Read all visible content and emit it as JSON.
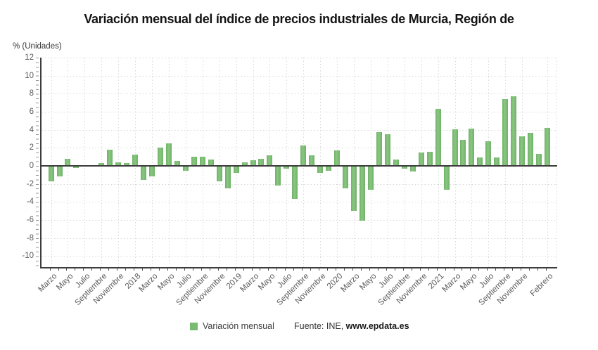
{
  "title": "Variación mensual del índice de precios industriales de Murcia, Región de",
  "y_axis_unit": "% (Unidades)",
  "legend": {
    "label": "Variación mensual"
  },
  "source": {
    "prefix": "Fuente: INE,",
    "brand": "www.epdata.es"
  },
  "colors": {
    "bar": "#7abb72",
    "axis": "#3c3c3c",
    "grid": "#d8d8d8",
    "tick_text": "#5a5a5a",
    "title_text": "#141414"
  },
  "chart_data": {
    "type": "bar",
    "title": "Variación mensual del índice de precios industriales de Murcia, Región de",
    "xlabel": "",
    "ylabel": "% (Unidades)",
    "ylim": [
      -11.2,
      12
    ],
    "grid": true,
    "legend_position": "bottom",
    "series_name": "Variación mensual",
    "y_ticks": [
      12,
      10,
      8,
      6,
      4,
      2,
      0,
      -2,
      -4,
      -6,
      -8,
      -10
    ],
    "x_tick_labels": [
      "Marzo",
      "Mayo",
      "Julio",
      "Septiembre",
      "Noviembre",
      "2018",
      "Marzo",
      "Mayo",
      "Julio",
      "Septiembre",
      "Noviembre",
      "2019",
      "Marzo",
      "Mayo",
      "Julio",
      "Septiembre",
      "Noviembre",
      "2020",
      "Marzo",
      "Mayo",
      "Julio",
      "Septiembre",
      "Noviembre",
      "2021",
      "Marzo",
      "Mayo",
      "Julio",
      "Septiembre",
      "Noviembre",
      "Febrero"
    ],
    "categories": [
      "2017-03",
      "2017-04",
      "2017-05",
      "2017-06",
      "2017-07",
      "2017-08",
      "2017-09",
      "2017-10",
      "2017-11",
      "2017-12",
      "2018-01",
      "2018-02",
      "2018-03",
      "2018-04",
      "2018-05",
      "2018-06",
      "2018-07",
      "2018-08",
      "2018-09",
      "2018-10",
      "2018-11",
      "2018-12",
      "2019-01",
      "2019-02",
      "2019-03",
      "2019-04",
      "2019-05",
      "2019-06",
      "2019-07",
      "2019-08",
      "2019-09",
      "2019-10",
      "2019-11",
      "2019-12",
      "2020-01",
      "2020-02",
      "2020-03",
      "2020-04",
      "2020-05",
      "2020-06",
      "2020-07",
      "2020-08",
      "2020-09",
      "2020-10",
      "2020-11",
      "2020-12",
      "2021-01",
      "2021-02",
      "2021-03",
      "2021-04",
      "2021-05",
      "2021-06",
      "2021-07",
      "2021-08",
      "2021-09",
      "2021-10",
      "2021-11",
      "2021-12",
      "2022-01",
      "2022-02"
    ],
    "values": [
      -1.65,
      -1.1,
      0.8,
      -0.15,
      0,
      0,
      0.35,
      1.8,
      0.4,
      0.3,
      1.25,
      -1.45,
      -1.1,
      2.05,
      2.5,
      0.55,
      -0.45,
      1.0,
      1.05,
      0.7,
      -1.6,
      -2.45,
      -0.7,
      0.4,
      0.65,
      0.8,
      1.15,
      -2.1,
      -0.25,
      -3.6,
      2.25,
      1.15,
      -0.7,
      -0.45,
      1.7,
      -2.4,
      -4.9,
      -6.0,
      -2.55,
      3.75,
      3.5,
      0.7,
      -0.2,
      -0.55,
      1.5,
      1.6,
      6.3,
      -2.6,
      4.05,
      2.85,
      4.1,
      0.9,
      2.7,
      0.9,
      7.4,
      7.7,
      3.3,
      3.7,
      1.35,
      4.2
    ]
  }
}
